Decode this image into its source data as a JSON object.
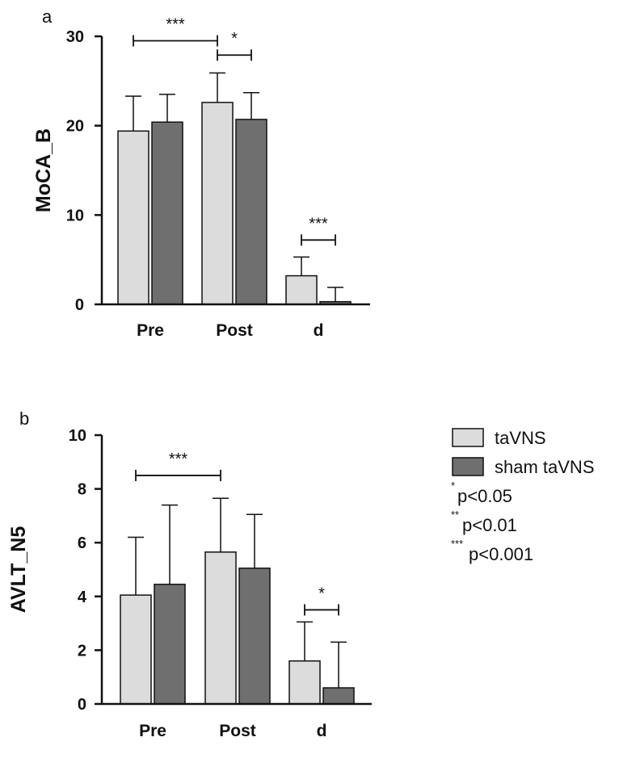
{
  "colors": {
    "taVNS": "#dcdcdc",
    "sham": "#6f6f6f",
    "ink": "#111111"
  },
  "legend": {
    "entries": [
      {
        "label": "taVNS"
      },
      {
        "label": "sham taVNS"
      }
    ],
    "significance": [
      {
        "stars": "*",
        "text": "p<0.05"
      },
      {
        "stars": "**",
        "text": "p<0.01"
      },
      {
        "stars": "***",
        "text": "p<0.001"
      }
    ]
  },
  "chart_data": [
    {
      "type": "bar",
      "panel_label": "a",
      "ylabel": "MoCA_B",
      "categories": [
        "Pre",
        "Post",
        "d"
      ],
      "yticks": [
        0,
        10,
        20,
        30
      ],
      "ylim": [
        0,
        30
      ],
      "series": [
        {
          "name": "taVNS",
          "values": [
            19.4,
            22.6,
            3.2
          ],
          "errors": [
            3.9,
            3.3,
            2.1
          ]
        },
        {
          "name": "sham taVNS",
          "values": [
            20.4,
            20.7,
            0.3
          ],
          "errors": [
            3.1,
            3.0,
            1.6
          ]
        }
      ],
      "annotations": [
        {
          "stars": "***",
          "from": [
            0,
            0
          ],
          "to": [
            1,
            0
          ],
          "y": 29.5
        },
        {
          "stars": "*",
          "from": [
            1,
            0
          ],
          "to": [
            1,
            1
          ],
          "y": 27.9
        },
        {
          "stars": "***",
          "from": [
            2,
            0
          ],
          "to": [
            2,
            1
          ],
          "y": 7.2
        }
      ]
    },
    {
      "type": "bar",
      "panel_label": "b",
      "ylabel": "AVLT_N5",
      "categories": [
        "Pre",
        "Post",
        "d"
      ],
      "yticks": [
        0,
        2,
        4,
        6,
        8,
        10
      ],
      "ylim": [
        0,
        10
      ],
      "series": [
        {
          "name": "taVNS",
          "values": [
            4.05,
            5.65,
            1.6
          ],
          "errors": [
            2.15,
            2.0,
            1.45
          ]
        },
        {
          "name": "sham taVNS",
          "values": [
            4.45,
            5.05,
            0.6
          ],
          "errors": [
            2.95,
            2.0,
            1.7
          ]
        }
      ],
      "annotations": [
        {
          "stars": "***",
          "from": [
            0,
            0
          ],
          "to": [
            1,
            0
          ],
          "y": 8.5
        },
        {
          "stars": "*",
          "from": [
            2,
            0
          ],
          "to": [
            2,
            1
          ],
          "y": 3.5
        }
      ]
    }
  ]
}
